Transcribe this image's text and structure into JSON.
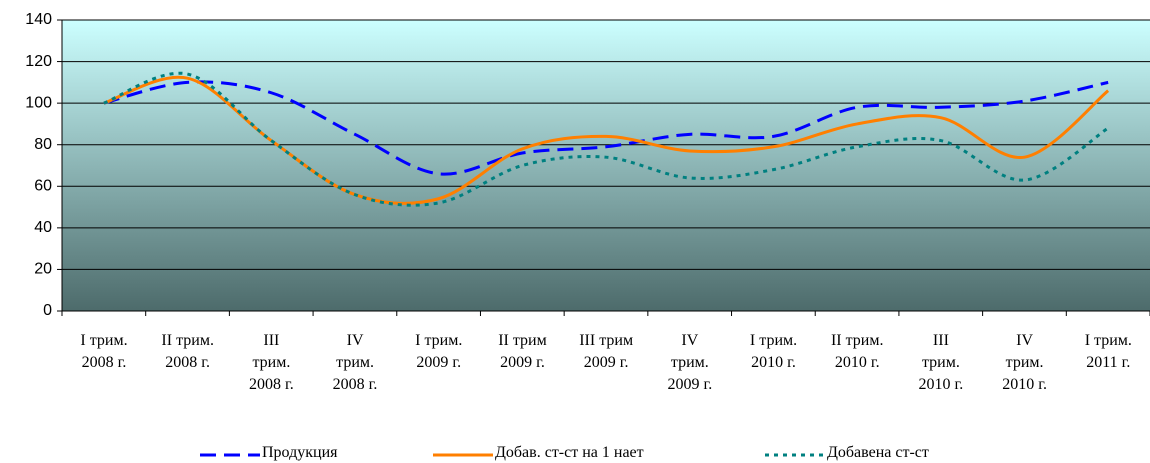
{
  "chart_data": {
    "type": "line",
    "categories": [
      "I трим.\n2008 г.",
      "II трим.\n2008 г.",
      "III\nтрим.\n2008 г.",
      "IV\nтрим.\n2008 г.",
      "I трим.\n2009 г.",
      "II трим\n2009 г.",
      "III трим\n2009 г.",
      "IV\nтрим.\n2009 г.",
      "I трим.\n2010 г.",
      "II трим.\n2010 г.",
      "III\nтрим.\n2010 г.",
      "IV\nтрим.\n2010 г.",
      "I трим.\n2011 г."
    ],
    "series": [
      {
        "name": "Продукция",
        "color": "#0000ff",
        "dash": "dashed",
        "values": [
          100,
          110,
          105,
          85,
          66,
          76,
          79,
          85,
          84,
          98,
          98,
          101,
          110
        ]
      },
      {
        "name": "Добав. ст-ст на 1 нает",
        "color": "#ff7f00",
        "dash": "solid",
        "values": [
          100,
          112,
          82,
          56,
          54,
          78,
          84,
          77,
          79,
          90,
          93,
          74,
          106
        ]
      },
      {
        "name": "Добавена ст-ст",
        "color": "#008080",
        "dash": "dotted",
        "values": [
          100,
          114,
          82,
          56,
          52,
          70,
          74,
          64,
          68,
          79,
          82,
          63,
          88
        ]
      }
    ],
    "ylim": [
      0,
      140
    ],
    "yticks": [
      0,
      20,
      40,
      60,
      80,
      100,
      120,
      140
    ],
    "grid": true,
    "smooth": true,
    "legend": "bottom"
  }
}
